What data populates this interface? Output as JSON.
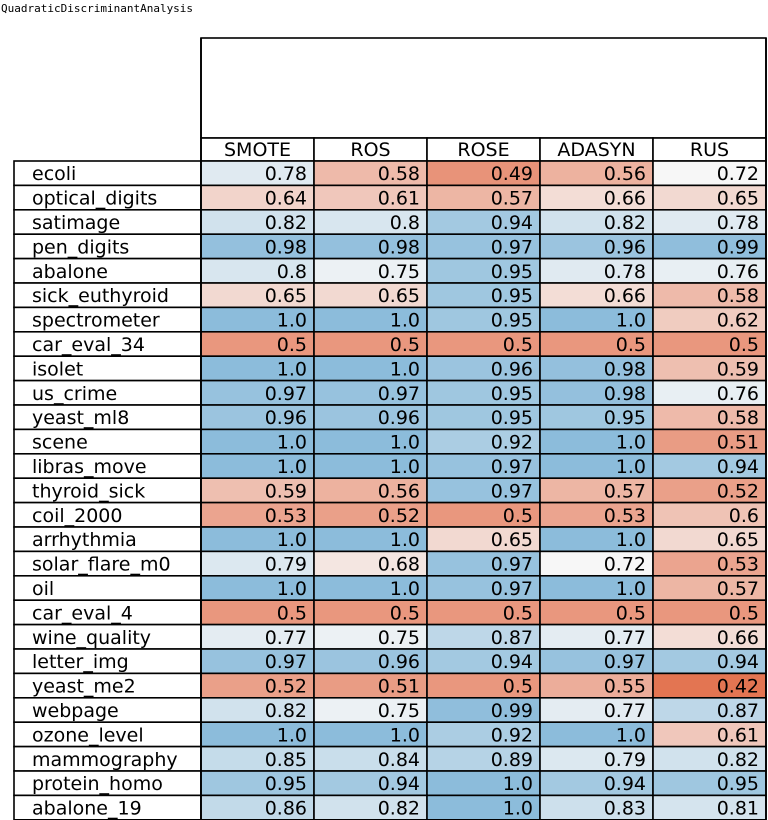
{
  "page_title": "QuadraticDiscriminantAnalysis",
  "chart_data": {
    "type": "table",
    "title": "QuadraticDiscriminantAnalysis",
    "columns": [
      "SMOTE",
      "ROS",
      "ROSE",
      "ADASYN",
      "RUS"
    ],
    "rows": [
      {
        "label": "ecoli",
        "values": [
          "0.78",
          "0.58",
          "0.49",
          "0.56",
          "0.72"
        ]
      },
      {
        "label": "optical_digits",
        "values": [
          "0.64",
          "0.61",
          "0.57",
          "0.66",
          "0.65"
        ]
      },
      {
        "label": "satimage",
        "values": [
          "0.82",
          "0.8",
          "0.94",
          "0.82",
          "0.78"
        ]
      },
      {
        "label": "pen_digits",
        "values": [
          "0.98",
          "0.98",
          "0.97",
          "0.96",
          "0.99"
        ]
      },
      {
        "label": "abalone",
        "values": [
          "0.8",
          "0.75",
          "0.95",
          "0.78",
          "0.76"
        ]
      },
      {
        "label": "sick_euthyroid",
        "values": [
          "0.65",
          "0.65",
          "0.95",
          "0.66",
          "0.58"
        ]
      },
      {
        "label": "spectrometer",
        "values": [
          "1.0",
          "1.0",
          "0.95",
          "1.0",
          "0.62"
        ]
      },
      {
        "label": "car_eval_34",
        "values": [
          "0.5",
          "0.5",
          "0.5",
          "0.5",
          "0.5"
        ]
      },
      {
        "label": "isolet",
        "values": [
          "1.0",
          "1.0",
          "0.96",
          "0.98",
          "0.59"
        ]
      },
      {
        "label": "us_crime",
        "values": [
          "0.97",
          "0.97",
          "0.95",
          "0.98",
          "0.76"
        ]
      },
      {
        "label": "yeast_ml8",
        "values": [
          "0.96",
          "0.96",
          "0.95",
          "0.95",
          "0.58"
        ]
      },
      {
        "label": "scene",
        "values": [
          "1.0",
          "1.0",
          "0.92",
          "1.0",
          "0.51"
        ]
      },
      {
        "label": "libras_move",
        "values": [
          "1.0",
          "1.0",
          "0.97",
          "1.0",
          "0.94"
        ]
      },
      {
        "label": "thyroid_sick",
        "values": [
          "0.59",
          "0.56",
          "0.97",
          "0.57",
          "0.52"
        ]
      },
      {
        "label": "coil_2000",
        "values": [
          "0.53",
          "0.52",
          "0.5",
          "0.53",
          "0.6"
        ]
      },
      {
        "label": "arrhythmia",
        "values": [
          "1.0",
          "1.0",
          "0.65",
          "1.0",
          "0.65"
        ]
      },
      {
        "label": "solar_flare_m0",
        "values": [
          "0.79",
          "0.68",
          "0.97",
          "0.72",
          "0.53"
        ]
      },
      {
        "label": "oil",
        "values": [
          "1.0",
          "1.0",
          "0.97",
          "1.0",
          "0.57"
        ]
      },
      {
        "label": "car_eval_4",
        "values": [
          "0.5",
          "0.5",
          "0.5",
          "0.5",
          "0.5"
        ]
      },
      {
        "label": "wine_quality",
        "values": [
          "0.77",
          "0.75",
          "0.87",
          "0.77",
          "0.66"
        ]
      },
      {
        "label": "letter_img",
        "values": [
          "0.97",
          "0.96",
          "0.94",
          "0.97",
          "0.94"
        ]
      },
      {
        "label": "yeast_me2",
        "values": [
          "0.52",
          "0.51",
          "0.5",
          "0.55",
          "0.42"
        ]
      },
      {
        "label": "webpage",
        "values": [
          "0.82",
          "0.75",
          "0.99",
          "0.77",
          "0.87"
        ]
      },
      {
        "label": "ozone_level",
        "values": [
          "1.0",
          "1.0",
          "0.92",
          "1.0",
          "0.61"
        ]
      },
      {
        "label": "mammography",
        "values": [
          "0.85",
          "0.84",
          "0.89",
          "0.79",
          "0.82"
        ]
      },
      {
        "label": "protein_homo",
        "values": [
          "0.95",
          "0.94",
          "1.0",
          "0.94",
          "0.95"
        ]
      },
      {
        "label": "abalone_19",
        "values": [
          "0.86",
          "0.82",
          "1.0",
          "0.83",
          "0.81"
        ]
      }
    ],
    "color_scale": {
      "type": "diverging",
      "low_color": "#e26c47",
      "mid_color": "#f7f7f7",
      "high_color": "#8cbcdb",
      "low_value": 0.4,
      "mid_value": 0.72,
      "high_value": 1.0
    }
  }
}
